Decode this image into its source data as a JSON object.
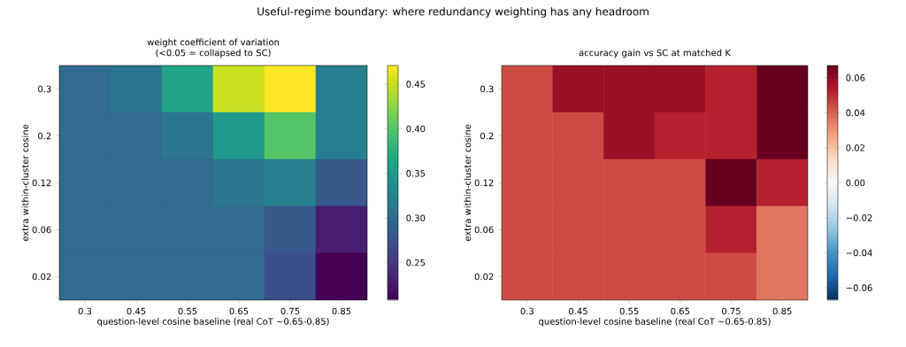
{
  "chart_data": [
    {
      "type": "heatmap",
      "title": "weight coefficient of variation (<0.05 = collapsed to SC)",
      "xlabel": "question-level cosine baseline (real CoT ~0.65-0.85)",
      "ylabel": "extra within-cluster cosine",
      "annotations": [
        "Useful-regime boundary: where redundancy weighting has any headroom"
      ],
      "categories": [
        "0.3",
        "0.45",
        "0.55",
        "0.65",
        "0.75",
        "0.85"
      ],
      "y_categories": [
        "0.3",
        "0.2",
        "0.12",
        "0.06",
        "0.02"
      ],
      "cells": [
        [
          0.3,
          0.31,
          0.36,
          0.45,
          0.471,
          0.32
        ],
        [
          0.3,
          0.3,
          0.31,
          0.35,
          0.4,
          0.32
        ],
        [
          0.3,
          0.3,
          0.3,
          0.31,
          0.32,
          0.28
        ],
        [
          0.3,
          0.3,
          0.3,
          0.3,
          0.28,
          0.23
        ],
        [
          0.3,
          0.3,
          0.3,
          0.3,
          0.27,
          0.208
        ]
      ],
      "clim": [
        0.208,
        0.471
      ],
      "cticks": [
        {
          "value": 0.25,
          "label": "0.25"
        },
        {
          "value": 0.3,
          "label": "0.30"
        },
        {
          "value": 0.35,
          "label": "0.35"
        },
        {
          "value": 0.4,
          "label": "0.40"
        },
        {
          "value": 0.45,
          "label": "0.45"
        }
      ]
    },
    {
      "type": "heatmap",
      "title": "accuracy gain vs SC at matched K",
      "xlabel": "question-level cosine baseline (real CoT ~0.65-0.85)",
      "ylabel": "extra within-cluster cosine",
      "categories": [
        "0.3",
        "0.45",
        "0.55",
        "0.65",
        "0.75",
        "0.85"
      ],
      "y_categories": [
        "0.3",
        "0.2",
        "0.12",
        "0.06",
        "0.02"
      ],
      "cells": [
        [
          0.044,
          0.058,
          0.058,
          0.058,
          0.052,
          0.067
        ],
        [
          0.044,
          0.044,
          0.058,
          0.052,
          0.052,
          0.067
        ],
        [
          0.044,
          0.044,
          0.044,
          0.044,
          0.067,
          0.052
        ],
        [
          0.044,
          0.044,
          0.044,
          0.044,
          0.052,
          0.036
        ],
        [
          0.044,
          0.044,
          0.044,
          0.044,
          0.044,
          0.036
        ]
      ],
      "clim": [
        -0.067,
        0.067
      ],
      "cticks": [
        {
          "value": -0.06,
          "label": "−0.06"
        },
        {
          "value": -0.04,
          "label": "−0.04"
        },
        {
          "value": -0.02,
          "label": "−0.02"
        },
        {
          "value": 0.0,
          "label": "0.00"
        },
        {
          "value": 0.02,
          "label": "0.02"
        },
        {
          "value": 0.04,
          "label": "0.04"
        },
        {
          "value": 0.06,
          "label": "0.06"
        }
      ]
    }
  ]
}
